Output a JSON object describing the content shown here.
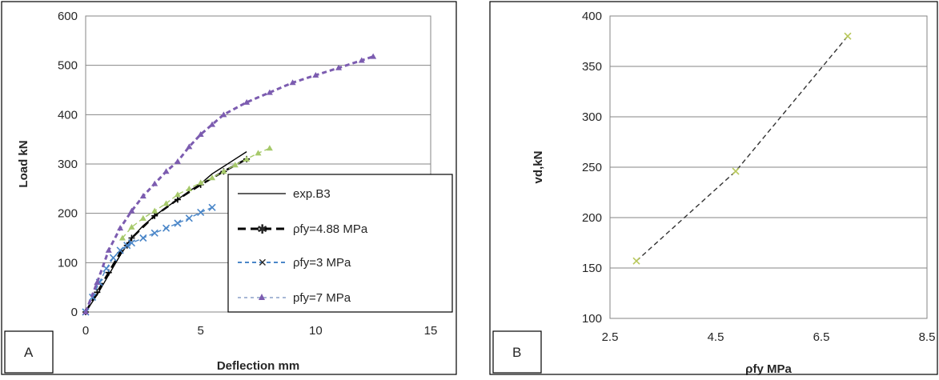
{
  "chart_data": [
    {
      "panel": "A",
      "type": "line",
      "xlabel": "Deflection mm",
      "ylabel": "Load kN",
      "xlim": [
        0,
        15
      ],
      "ylim": [
        0,
        600
      ],
      "x_ticks": [
        0,
        5,
        10,
        15
      ],
      "y_ticks": [
        0,
        100,
        200,
        300,
        400,
        500,
        600
      ],
      "grid": "horizontal",
      "legend_position": "bottom-right",
      "series": [
        {
          "name": "exp.B3",
          "color": "#000000",
          "style": "solid",
          "marker": "none",
          "x": [
            0,
            0.5,
            1.0,
            1.5,
            2.0,
            2.5,
            3.0,
            3.5,
            4.0,
            4.5,
            5.0,
            5.5,
            6.0,
            6.5,
            7.0
          ],
          "y": [
            0,
            35,
            75,
            115,
            150,
            175,
            195,
            212,
            228,
            245,
            260,
            280,
            295,
            310,
            325
          ]
        },
        {
          "name": "ρfy=4.88 MPa",
          "color": "#000000",
          "style": "dashed",
          "marker": "star",
          "x": [
            0,
            0.5,
            1.0,
            1.5,
            1.8,
            2.0,
            3.0,
            4.0,
            5.0,
            6.0,
            7.0
          ],
          "y": [
            0,
            40,
            80,
            120,
            135,
            150,
            195,
            228,
            258,
            285,
            310
          ]
        },
        {
          "name": "ρfy=3 MPa",
          "color": "#4a86c8",
          "style": "dashed",
          "marker": "x",
          "x": [
            0,
            0.3,
            0.6,
            0.9,
            1.2,
            1.5,
            1.8,
            2.0,
            2.5,
            3.0,
            3.5,
            4.0,
            4.5,
            5.0,
            5.5
          ],
          "y": [
            0,
            30,
            60,
            88,
            110,
            125,
            135,
            140,
            150,
            160,
            170,
            180,
            190,
            202,
            212
          ]
        },
        {
          "name": "pfy=7 MPa",
          "color": "#7c5cb0",
          "style": "dashed",
          "marker": "triangle",
          "x": [
            0,
            0.5,
            1.0,
            1.5,
            2.0,
            2.5,
            3.0,
            3.5,
            4.0,
            4.5,
            5.0,
            5.5,
            6.0,
            7.0,
            8.0,
            9.0,
            10.0,
            11.0,
            12.0,
            12.5
          ],
          "y": [
            0,
            60,
            125,
            170,
            205,
            235,
            260,
            285,
            305,
            335,
            360,
            380,
            400,
            425,
            445,
            465,
            480,
            495,
            510,
            518
          ]
        },
        {
          "name": "",
          "color": "#a6c96a",
          "style": "dashed",
          "marker": "triangle",
          "x": [
            1.6,
            2.0,
            2.5,
            3.0,
            3.5,
            4.0,
            4.5,
            5.0,
            5.5,
            6.0,
            6.5,
            7.0,
            7.5,
            8.0
          ],
          "y": [
            150,
            172,
            190,
            205,
            220,
            238,
            250,
            262,
            272,
            285,
            298,
            310,
            322,
            332
          ]
        }
      ]
    },
    {
      "panel": "B",
      "type": "line",
      "xlabel": "ρfy MPa",
      "ylabel": "vd,kN",
      "xlim": [
        2.5,
        8.5
      ],
      "ylim": [
        100,
        400
      ],
      "x_ticks": [
        2.5,
        4.5,
        6.5,
        8.5
      ],
      "y_ticks": [
        100,
        150,
        200,
        250,
        300,
        350,
        400
      ],
      "grid": "horizontal",
      "series": [
        {
          "name": "",
          "color": "#333333",
          "style": "dashed",
          "marker": "x",
          "marker_color": "#b8c85a",
          "x": [
            3.0,
            4.88,
            7.0
          ],
          "y": [
            157,
            246,
            380
          ]
        }
      ]
    }
  ],
  "panel_labels": {
    "a": "A",
    "b": "B"
  },
  "legend": {
    "entries": [
      "exp.B3",
      "ρfy=4.88 MPa",
      "ρfy=3 MPa",
      "pfy=7 MPa"
    ]
  }
}
